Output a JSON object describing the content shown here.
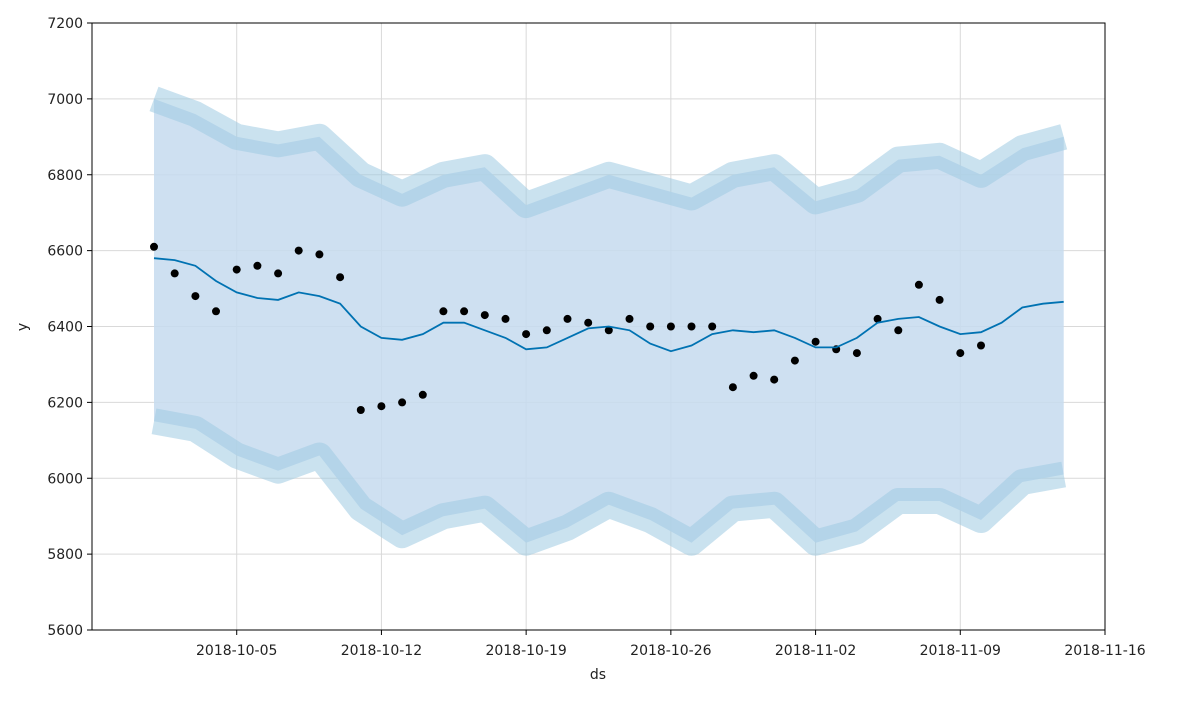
{
  "chart_data": {
    "type": "line",
    "xlabel": "ds",
    "ylabel": "y",
    "xlim": [
      "2018-09-28",
      "2018-11-16"
    ],
    "ylim": [
      5600,
      7200
    ],
    "x_ticks": [
      "2018-10-05",
      "2018-10-12",
      "2018-10-19",
      "2018-10-26",
      "2018-11-02",
      "2018-11-09",
      "2018-11-16"
    ],
    "y_ticks": [
      5600,
      5800,
      6000,
      6200,
      6400,
      6600,
      6800,
      7000,
      7200
    ],
    "grid": true,
    "series": [
      {
        "kind": "uncertainty_band",
        "color": "#9ecae1",
        "fill_color": "#c6dbef",
        "x": [
          "2018-10-01",
          "2018-10-03",
          "2018-10-05",
          "2018-10-07",
          "2018-10-09",
          "2018-10-11",
          "2018-10-13",
          "2018-10-15",
          "2018-10-17",
          "2018-10-19",
          "2018-10-21",
          "2018-10-23",
          "2018-10-25",
          "2018-10-27",
          "2018-10-29",
          "2018-10-31",
          "2018-11-02",
          "2018-11-04",
          "2018-11-06",
          "2018-11-08",
          "2018-11-10",
          "2018-11-12",
          "2018-11-14"
        ],
        "upper": [
          7000,
          6960,
          6900,
          6880,
          6900,
          6800,
          6750,
          6800,
          6820,
          6720,
          6760,
          6800,
          6770,
          6740,
          6800,
          6820,
          6730,
          6760,
          6840,
          6850,
          6800,
          6870,
          6900
        ],
        "lower": [
          6150,
          6130,
          6060,
          6020,
          6060,
          5920,
          5850,
          5900,
          5920,
          5830,
          5870,
          5930,
          5890,
          5830,
          5920,
          5930,
          5830,
          5860,
          5940,
          5940,
          5890,
          5990,
          6010
        ]
      },
      {
        "kind": "forecast_line",
        "color": "#0072B2",
        "x": [
          "2018-10-01",
          "2018-10-02",
          "2018-10-03",
          "2018-10-04",
          "2018-10-05",
          "2018-10-06",
          "2018-10-07",
          "2018-10-08",
          "2018-10-09",
          "2018-10-10",
          "2018-10-11",
          "2018-10-12",
          "2018-10-13",
          "2018-10-14",
          "2018-10-15",
          "2018-10-16",
          "2018-10-17",
          "2018-10-18",
          "2018-10-19",
          "2018-10-20",
          "2018-10-21",
          "2018-10-22",
          "2018-10-23",
          "2018-10-24",
          "2018-10-25",
          "2018-10-26",
          "2018-10-27",
          "2018-10-28",
          "2018-10-29",
          "2018-10-30",
          "2018-10-31",
          "2018-11-01",
          "2018-11-02",
          "2018-11-03",
          "2018-11-04",
          "2018-11-05",
          "2018-11-06",
          "2018-11-07",
          "2018-11-08",
          "2018-11-09",
          "2018-11-10",
          "2018-11-11",
          "2018-11-12",
          "2018-11-13",
          "2018-11-14"
        ],
        "y": [
          6580,
          6575,
          6560,
          6520,
          6490,
          6475,
          6470,
          6490,
          6480,
          6460,
          6400,
          6370,
          6365,
          6380,
          6410,
          6410,
          6390,
          6370,
          6340,
          6345,
          6370,
          6395,
          6400,
          6390,
          6355,
          6335,
          6350,
          6380,
          6390,
          6385,
          6390,
          6370,
          6345,
          6345,
          6370,
          6410,
          6420,
          6425,
          6400,
          6380,
          6385,
          6410,
          6450,
          6460,
          6465
        ]
      },
      {
        "kind": "observed_points",
        "color": "#000000",
        "x": [
          "2018-10-01",
          "2018-10-02",
          "2018-10-03",
          "2018-10-04",
          "2018-10-05",
          "2018-10-06",
          "2018-10-07",
          "2018-10-08",
          "2018-10-09",
          "2018-10-10",
          "2018-10-11",
          "2018-10-12",
          "2018-10-13",
          "2018-10-14",
          "2018-10-15",
          "2018-10-16",
          "2018-10-17",
          "2018-10-18",
          "2018-10-19",
          "2018-10-20",
          "2018-10-21",
          "2018-10-22",
          "2018-10-23",
          "2018-10-24",
          "2018-10-25",
          "2018-10-26",
          "2018-10-27",
          "2018-10-28",
          "2018-10-29",
          "2018-10-30",
          "2018-10-31",
          "2018-11-01",
          "2018-11-02",
          "2018-11-03",
          "2018-11-04",
          "2018-11-05",
          "2018-11-06",
          "2018-11-07",
          "2018-11-08",
          "2018-11-09",
          "2018-11-10"
        ],
        "y": [
          6610,
          6540,
          6480,
          6440,
          6550,
          6560,
          6540,
          6600,
          6590,
          6530,
          6180,
          6190,
          6200,
          6220,
          6440,
          6440,
          6430,
          6420,
          6380,
          6390,
          6420,
          6410,
          6390,
          6420,
          6400,
          6400,
          6400,
          6400,
          6240,
          6270,
          6260,
          6310,
          6360,
          6340,
          6330,
          6420,
          6390,
          6510,
          6470,
          6330,
          6350
        ]
      }
    ]
  }
}
